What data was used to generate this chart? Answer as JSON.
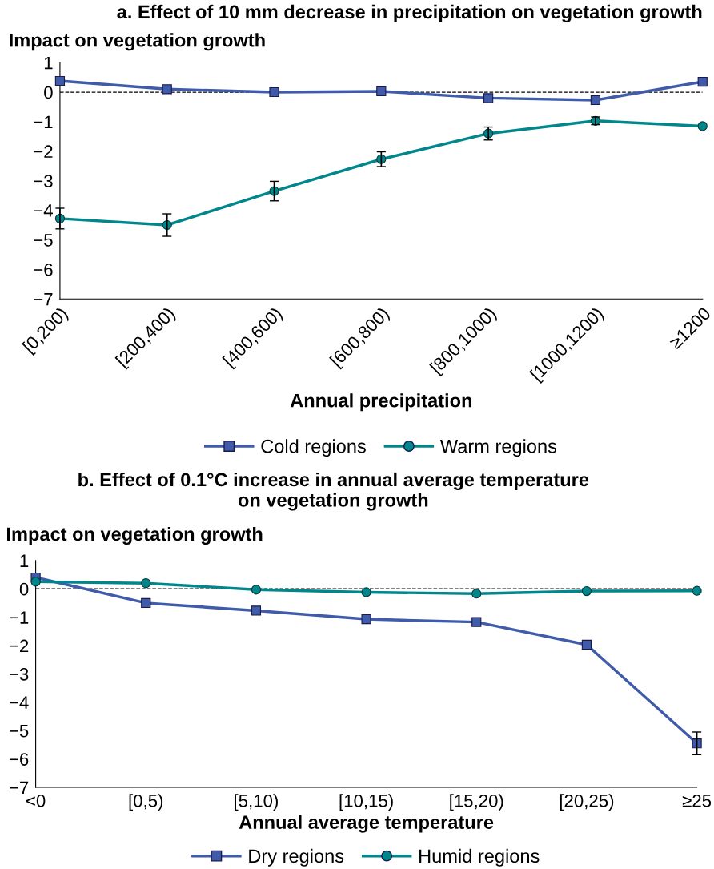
{
  "chart_data": [
    {
      "type": "line",
      "title": "a. Effect of 10 mm decrease in precipitation on vegetation growth",
      "ylabel": "Impact on vegetation growth",
      "xlabel": "Annual precipitation",
      "categories": [
        "[0,200)",
        "[200,400)",
        "[400,600)",
        "[600,800)",
        "[800,1000)",
        "[1000,1200)",
        "≥1200"
      ],
      "series": [
        {
          "name": "Cold regions",
          "color": "#3f5ba9",
          "marker": "square",
          "values": [
            0.38,
            0.1,
            0.0,
            0.03,
            -0.2,
            -0.27,
            0.35
          ]
        },
        {
          "name": "Warm regions",
          "color": "#00868b",
          "marker": "circle",
          "values": [
            -4.28,
            -4.5,
            -3.35,
            -2.27,
            -1.4,
            -0.97,
            -1.15
          ],
          "errors": [
            0.35,
            0.38,
            0.33,
            0.25,
            0.22,
            0.13,
            null
          ]
        }
      ],
      "ylim": [
        -7,
        1
      ],
      "yticks": [
        -7,
        -6,
        -5,
        -4,
        -3,
        -2,
        -1,
        0,
        1
      ],
      "ref_lines": [
        {
          "axis": "y",
          "value": 0,
          "label": null,
          "color": "#000000",
          "line_style": "dashed"
        }
      ],
      "grid": false,
      "legend": "bottom",
      "line_style": "solid"
    },
    {
      "type": "line",
      "title": "b. Effect of 0.1°C increase in annual average temperature\non vegetation growth",
      "ylabel": "Impact on vegetation growth",
      "xlabel": "Annual average temperature",
      "categories": [
        "<0",
        "[0,5)",
        "[5,10)",
        "[10,15)",
        "[15,20)",
        "[20,25)",
        "≥25"
      ],
      "series": [
        {
          "name": "Dry regions",
          "color": "#3f5ba9",
          "marker": "square",
          "values": [
            0.4,
            -0.5,
            -0.77,
            -1.07,
            -1.17,
            -1.97,
            -5.45
          ],
          "errors": [
            null,
            null,
            null,
            null,
            null,
            null,
            0.4
          ]
        },
        {
          "name": "Humid regions",
          "color": "#00868b",
          "marker": "circle",
          "values": [
            0.25,
            0.2,
            -0.03,
            -0.12,
            -0.17,
            -0.08,
            -0.07
          ]
        }
      ],
      "ylim": [
        -7,
        1
      ],
      "yticks": [
        -7,
        -6,
        -5,
        -4,
        -3,
        -2,
        -1,
        0,
        1
      ],
      "ref_lines": [
        {
          "axis": "y",
          "value": 0,
          "label": null,
          "color": "#000000",
          "line_style": "dashed"
        }
      ],
      "grid": false,
      "legend": "bottom",
      "line_style": "solid"
    }
  ]
}
